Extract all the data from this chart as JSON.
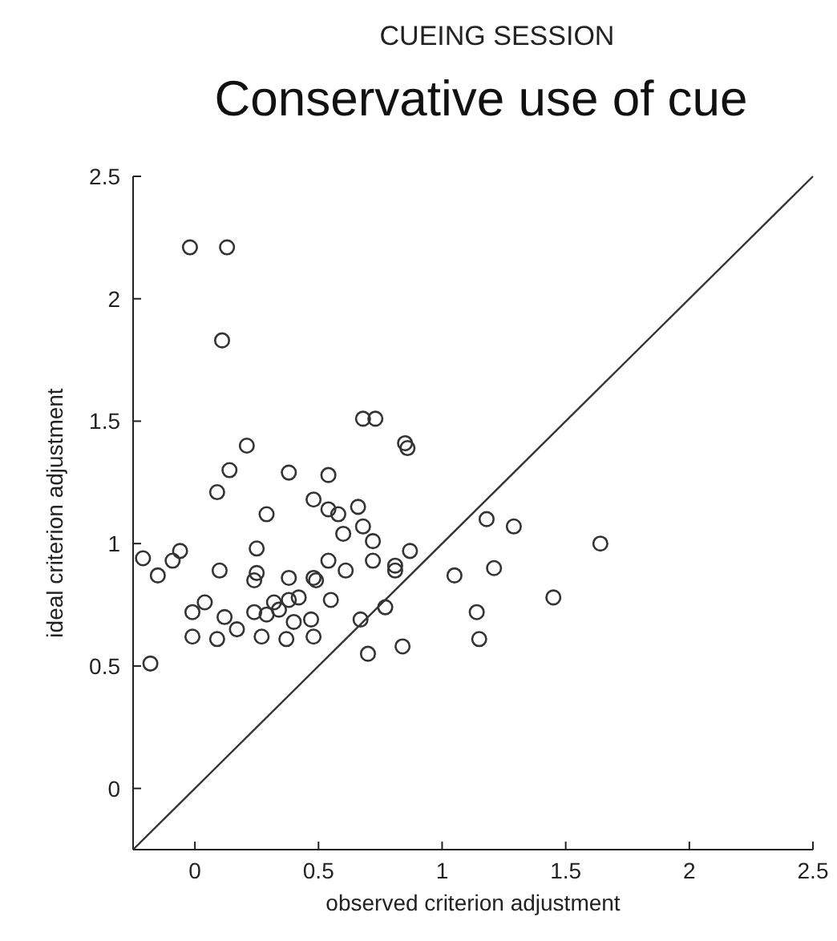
{
  "chart_data": {
    "type": "scatter",
    "subtitle": "CUEING SESSION",
    "title": "Conservative use of cue",
    "xlabel": "observed criterion adjustment",
    "ylabel": "ideal criterion adjustment",
    "xlim": [
      -0.25,
      2.5
    ],
    "ylim": [
      -0.25,
      2.5
    ],
    "xticks": [
      0,
      0.5,
      1,
      1.5,
      2,
      2.5
    ],
    "yticks": [
      0,
      0.5,
      1,
      1.5,
      2,
      2.5
    ],
    "grid": false,
    "marker": "circle",
    "series": [
      {
        "color": "#333333",
        "x": [
          -0.02,
          0.13,
          0.11,
          0.68,
          0.73,
          0.85,
          0.86,
          0.21,
          0.14,
          0.38,
          0.54,
          0.09,
          0.48,
          0.66,
          0.54,
          0.58,
          0.29,
          0.6,
          0.68,
          0.72,
          -0.21,
          -0.15,
          -0.09,
          -0.06,
          -0.18,
          -0.01,
          0.04,
          -0.01,
          0.09,
          0.12,
          0.17,
          0.1,
          0.25,
          0.25,
          0.24,
          0.24,
          0.27,
          0.29,
          0.32,
          0.34,
          0.38,
          0.38,
          0.42,
          0.37,
          0.4,
          0.47,
          0.48,
          0.48,
          0.49,
          0.54,
          0.55,
          0.61,
          0.72,
          0.81,
          0.81,
          0.87,
          0.77,
          0.67,
          0.7,
          0.84,
          1.05,
          1.14,
          1.15,
          1.18,
          1.29,
          1.64,
          1.21,
          1.45
        ],
        "values": [
          2.21,
          2.21,
          1.83,
          1.51,
          1.51,
          1.41,
          1.39,
          1.4,
          1.3,
          1.29,
          1.28,
          1.21,
          1.18,
          1.15,
          1.14,
          1.12,
          1.12,
          1.04,
          1.07,
          1.01,
          0.94,
          0.87,
          0.93,
          0.97,
          0.51,
          0.72,
          0.76,
          0.62,
          0.61,
          0.7,
          0.65,
          0.89,
          0.98,
          0.88,
          0.85,
          0.72,
          0.62,
          0.71,
          0.76,
          0.73,
          0.86,
          0.77,
          0.78,
          0.61,
          0.68,
          0.69,
          0.62,
          0.86,
          0.85,
          0.93,
          0.77,
          0.89,
          0.93,
          0.91,
          0.89,
          0.97,
          0.74,
          0.69,
          0.55,
          0.58,
          0.87,
          0.72,
          0.61,
          1.1,
          1.07,
          1,
          0.9,
          0.78
        ]
      },
      {
        "type": "line",
        "color": "#333333",
        "marker": "none",
        "line_style": "solid",
        "x": [
          -0.25,
          2.5
        ],
        "values": [
          -0.25,
          2.5
        ]
      }
    ]
  }
}
